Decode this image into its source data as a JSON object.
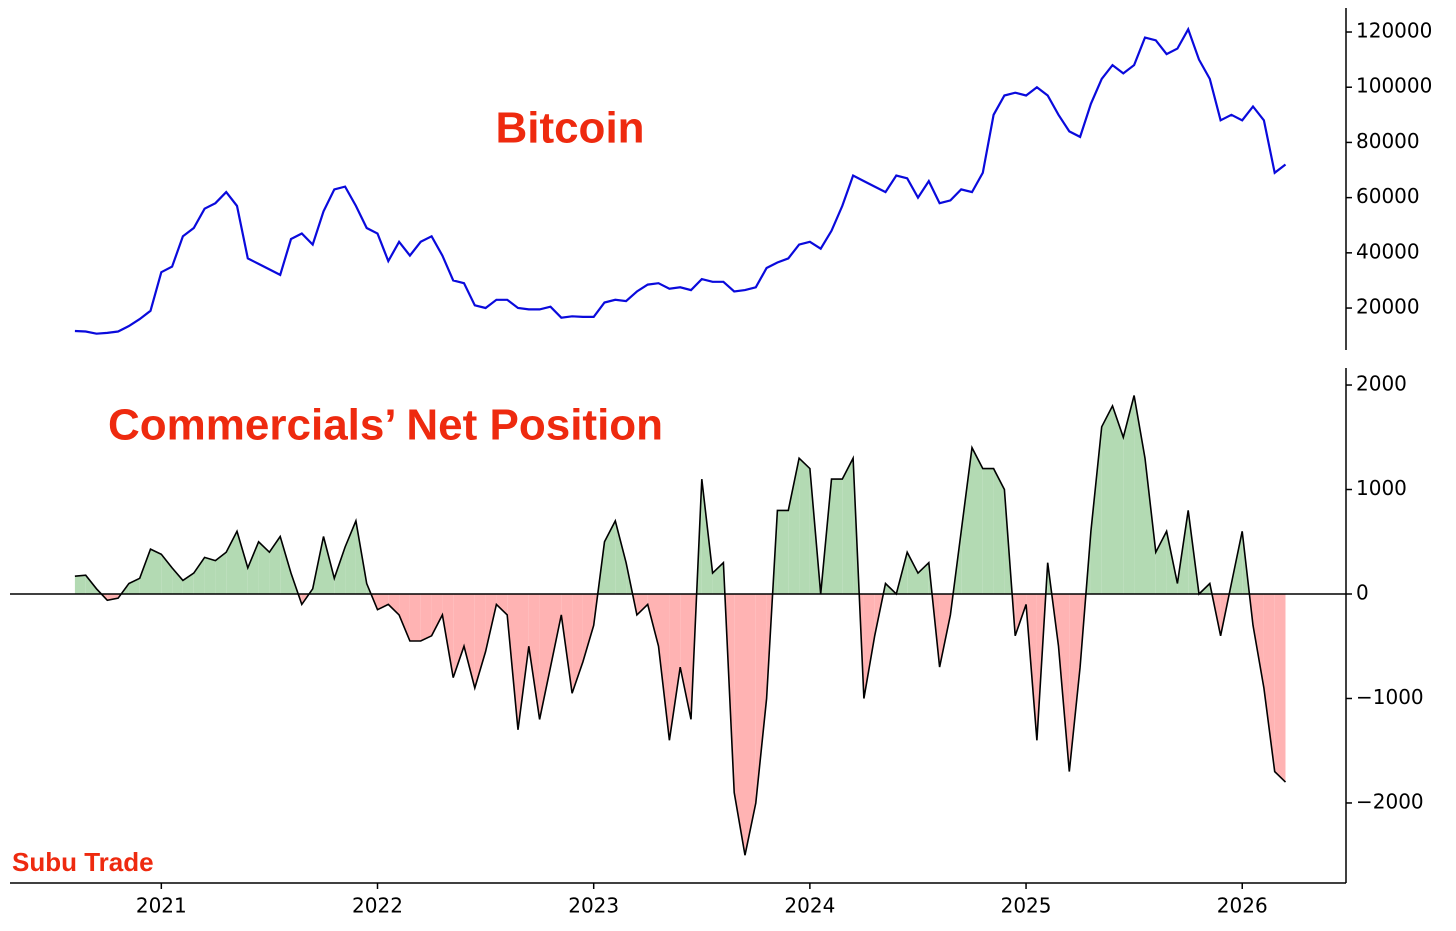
{
  "credit": "Subu Trade",
  "chart_data": [
    {
      "type": "line",
      "title": "Bitcoin",
      "color": "#0a0adc",
      "x": [
        2020.6,
        2020.65,
        2020.7,
        2020.75,
        2020.8,
        2020.85,
        2020.9,
        2020.95,
        2021.0,
        2021.05,
        2021.1,
        2021.15,
        2021.2,
        2021.25,
        2021.3,
        2021.35,
        2021.4,
        2021.45,
        2021.5,
        2021.55,
        2021.6,
        2021.65,
        2021.7,
        2021.75,
        2021.8,
        2021.85,
        2021.9,
        2021.95,
        2022.0,
        2022.05,
        2022.1,
        2022.15,
        2022.2,
        2022.25,
        2022.3,
        2022.35,
        2022.4,
        2022.45,
        2022.5,
        2022.55,
        2022.6,
        2022.65,
        2022.7,
        2022.75,
        2022.8,
        2022.85,
        2022.9,
        2022.95,
        2023.0,
        2023.05,
        2023.1,
        2023.15,
        2023.2,
        2023.25,
        2023.3,
        2023.35,
        2023.4,
        2023.45,
        2023.5,
        2023.55,
        2023.6,
        2023.65,
        2023.7,
        2023.75,
        2023.8,
        2023.85,
        2023.9,
        2023.95,
        2024.0,
        2024.05,
        2024.1,
        2024.15,
        2024.2,
        2024.25,
        2024.3,
        2024.35,
        2024.4,
        2024.45,
        2024.5,
        2024.55,
        2024.6,
        2024.65,
        2024.7,
        2024.75,
        2024.8,
        2024.85,
        2024.9,
        2024.95,
        2025.0,
        2025.05,
        2025.1,
        2025.15,
        2025.2,
        2025.25,
        2025.3,
        2025.35,
        2025.4,
        2025.45,
        2025.5,
        2025.55,
        2025.6,
        2025.65,
        2025.7,
        2025.75,
        2025.8,
        2025.85,
        2025.9,
        2025.95,
        2026.0,
        2026.05,
        2026.1,
        2026.15,
        2026.2
      ],
      "values": [
        11700,
        11500,
        10700,
        11000,
        11500,
        13500,
        16000,
        19000,
        33000,
        35000,
        46000,
        49000,
        56000,
        58000,
        62000,
        57000,
        38000,
        36000,
        34000,
        32000,
        45000,
        47000,
        43000,
        55000,
        63000,
        64000,
        57000,
        49000,
        47000,
        37000,
        44000,
        39000,
        44000,
        46000,
        39000,
        30000,
        29000,
        21000,
        20000,
        23000,
        23000,
        20000,
        19500,
        19500,
        20500,
        16500,
        17000,
        16800,
        16800,
        22000,
        23000,
        22500,
        26000,
        28500,
        29000,
        27000,
        27500,
        26500,
        30500,
        29500,
        29500,
        26000,
        26500,
        27500,
        34500,
        36500,
        38000,
        43000,
        44000,
        41500,
        48000,
        57000,
        68000,
        66000,
        64000,
        62000,
        68000,
        67000,
        60000,
        66000,
        58000,
        59000,
        63000,
        62000,
        69000,
        90000,
        97000,
        98000,
        97000,
        100000,
        97000,
        90000,
        84000,
        82000,
        94000,
        103000,
        108000,
        105000,
        108000,
        118000,
        117000,
        112000,
        114000,
        121000,
        110000,
        103000,
        88000,
        90000,
        88000,
        93000,
        88000,
        69000,
        72000
      ],
      "xlim": [
        2020.3,
        2026.48
      ],
      "ylim": [
        4800,
        128700
      ],
      "yticks": [
        20000,
        40000,
        60000,
        80000,
        100000,
        120000
      ]
    },
    {
      "type": "area",
      "title": "Commercials’ Net Position",
      "color": "#000000",
      "positive_color": "#b3dab3",
      "negative_color": "#ffb3b3",
      "x": [
        2020.6,
        2020.65,
        2020.7,
        2020.75,
        2020.8,
        2020.85,
        2020.9,
        2020.95,
        2021.0,
        2021.05,
        2021.1,
        2021.15,
        2021.2,
        2021.25,
        2021.3,
        2021.35,
        2021.4,
        2021.45,
        2021.5,
        2021.55,
        2021.6,
        2021.65,
        2021.7,
        2021.75,
        2021.8,
        2021.85,
        2021.9,
        2021.95,
        2022.0,
        2022.05,
        2022.1,
        2022.15,
        2022.2,
        2022.25,
        2022.3,
        2022.35,
        2022.4,
        2022.45,
        2022.5,
        2022.55,
        2022.6,
        2022.65,
        2022.7,
        2022.75,
        2022.8,
        2022.85,
        2022.9,
        2022.95,
        2023.0,
        2023.05,
        2023.1,
        2023.15,
        2023.2,
        2023.25,
        2023.3,
        2023.35,
        2023.4,
        2023.45,
        2023.5,
        2023.55,
        2023.6,
        2023.65,
        2023.7,
        2023.75,
        2023.8,
        2023.85,
        2023.9,
        2023.95,
        2024.0,
        2024.05,
        2024.1,
        2024.15,
        2024.2,
        2024.25,
        2024.3,
        2024.35,
        2024.4,
        2024.45,
        2024.5,
        2024.55,
        2024.6,
        2024.65,
        2024.7,
        2024.75,
        2024.8,
        2024.85,
        2024.9,
        2024.95,
        2025.0,
        2025.05,
        2025.1,
        2025.15,
        2025.2,
        2025.25,
        2025.3,
        2025.35,
        2025.4,
        2025.45,
        2025.5,
        2025.55,
        2025.6,
        2025.65,
        2025.7,
        2025.75,
        2025.8,
        2025.85,
        2025.9,
        2025.95,
        2026.0,
        2026.05,
        2026.1,
        2026.15,
        2026.2
      ],
      "values": [
        170,
        180,
        50,
        -60,
        -40,
        100,
        150,
        430,
        380,
        250,
        130,
        200,
        350,
        320,
        400,
        600,
        250,
        500,
        400,
        550,
        200,
        -100,
        50,
        550,
        150,
        450,
        700,
        100,
        -150,
        -100,
        -200,
        -450,
        -450,
        -400,
        -200,
        -800,
        -500,
        -900,
        -550,
        -100,
        -200,
        -1300,
        -500,
        -1200,
        -700,
        -200,
        -950,
        -650,
        -300,
        500,
        700,
        300,
        -200,
        -100,
        -500,
        -1400,
        -700,
        -1200,
        1100,
        200,
        300,
        -1900,
        -2500,
        -2000,
        -1000,
        800,
        800,
        1300,
        1200,
        0,
        1100,
        1100,
        1300,
        -1000,
        -400,
        100,
        0,
        400,
        200,
        300,
        -700,
        -200,
        600,
        1400,
        1200,
        1200,
        1000,
        -400,
        -100,
        -1400,
        300,
        -500,
        -1700,
        -700,
        600,
        1600,
        1800,
        1500,
        1900,
        1300,
        400,
        600,
        100,
        800,
        0,
        100,
        -400,
        100,
        600,
        -300,
        -900,
        -1700,
        -1800
      ],
      "xlim": [
        2020.3,
        2026.48
      ],
      "ylim": [
        -2766,
        2163
      ],
      "xticks": [
        2021,
        2022,
        2023,
        2024,
        2025,
        2026
      ],
      "yticks": [
        {
          "value": -2000,
          "label": "−2000"
        },
        {
          "value": -1000,
          "label": "−1000"
        },
        0,
        1000,
        2000
      ]
    }
  ]
}
